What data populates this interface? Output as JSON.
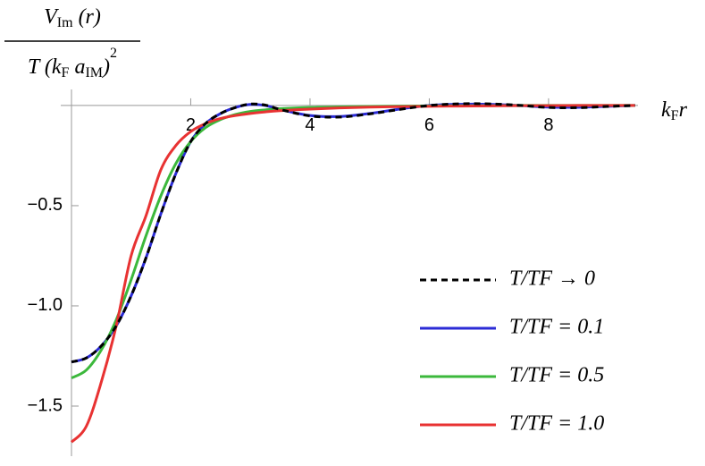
{
  "chart_data": {
    "type": "line",
    "y_label": {
      "numerator": [
        "V",
        "Im",
        " (r)"
      ],
      "denominator": [
        "T (k",
        "F",
        " a",
        "IM",
        ")",
        "2"
      ]
    },
    "x_label": [
      "k",
      "F",
      "r"
    ],
    "x": [
      0,
      0.25,
      0.5,
      0.75,
      1,
      1.25,
      1.5,
      1.75,
      2,
      2.25,
      2.5,
      2.75,
      3,
      3.25,
      3.5,
      4,
      4.5,
      5,
      5.5,
      6,
      6.5,
      7,
      7.5,
      8,
      8.5,
      9,
      9.45
    ],
    "series": [
      {
        "name": "T/TF → 0",
        "color": "#000000",
        "dashed": true,
        "values": [
          -1.28,
          -1.26,
          -1.2,
          -1.1,
          -0.95,
          -0.76,
          -0.54,
          -0.34,
          -0.18,
          -0.09,
          -0.04,
          -0.01,
          0.007,
          0.002,
          -0.02,
          -0.052,
          -0.058,
          -0.042,
          -0.02,
          0.0,
          0.008,
          0.008,
          0.001,
          -0.01,
          -0.011,
          -0.005,
          0.0
        ]
      },
      {
        "name": "T/TF = 0.1",
        "color": "#2b2bd6",
        "values": [
          -1.28,
          -1.26,
          -1.2,
          -1.1,
          -0.95,
          -0.76,
          -0.54,
          -0.34,
          -0.18,
          -0.09,
          -0.04,
          -0.01,
          0.005,
          0.0,
          -0.02,
          -0.05,
          -0.055,
          -0.04,
          -0.018,
          0.0,
          0.006,
          0.006,
          0.0,
          -0.008,
          -0.009,
          -0.004,
          0.0
        ]
      },
      {
        "name": "T/TF = 0.5",
        "color": "#3cb83c",
        "values": [
          -1.36,
          -1.32,
          -1.22,
          -1.07,
          -0.87,
          -0.65,
          -0.45,
          -0.29,
          -0.18,
          -0.11,
          -0.07,
          -0.045,
          -0.03,
          -0.022,
          -0.016,
          -0.01,
          -0.007,
          -0.005,
          -0.003,
          -0.002,
          -0.001,
          -0.001,
          0,
          0,
          0,
          0,
          0
        ]
      },
      {
        "name": "T/TF = 1.0",
        "color": "#e83232",
        "values": [
          -1.68,
          -1.6,
          -1.38,
          -1.1,
          -0.75,
          -0.55,
          -0.32,
          -0.2,
          -0.13,
          -0.09,
          -0.065,
          -0.05,
          -0.04,
          -0.032,
          -0.026,
          -0.018,
          -0.012,
          -0.008,
          -0.006,
          -0.004,
          -0.003,
          -0.002,
          -0.001,
          -0.001,
          0,
          0,
          0
        ]
      }
    ],
    "xlim": [
      0,
      9.5
    ],
    "ylim": [
      -1.75,
      0.08
    ],
    "xticks": [
      2,
      4,
      6,
      8
    ],
    "yticks": [
      {
        "value": -0.5,
        "label": "−0.5"
      },
      {
        "value": -1.0,
        "label": "−1.0"
      },
      {
        "value": -1.5,
        "label": "−1.5"
      }
    ],
    "legend": "lower-right"
  }
}
